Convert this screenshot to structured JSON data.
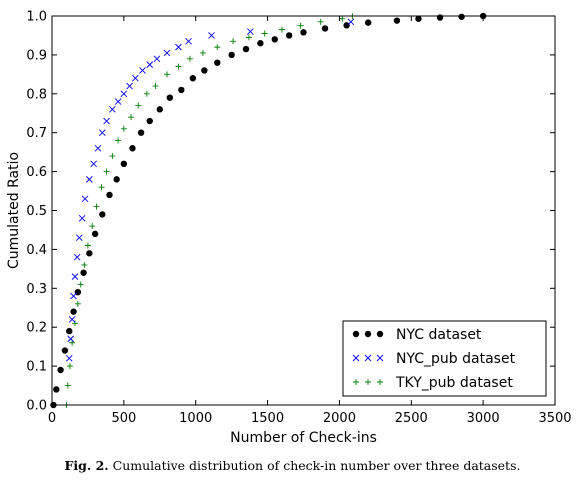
{
  "chart_data": {
    "type": "scatter",
    "xlabel": "Number of Check-ins",
    "ylabel": "Cumulated Ratio",
    "xlim": [
      0,
      3500
    ],
    "ylim": [
      0.0,
      1.0
    ],
    "xticks": [
      "0",
      "500",
      "1000",
      "1500",
      "2000",
      "2500",
      "3000",
      "3500"
    ],
    "yticks": [
      "0.0",
      "0.1",
      "0.2",
      "0.3",
      "0.4",
      "0.5",
      "0.6",
      "0.7",
      "0.8",
      "0.9",
      "1.0"
    ],
    "grid": false,
    "legend_position": "bottom-right",
    "series": [
      {
        "name": "NYC dataset",
        "marker": "circle",
        "color": "#000000",
        "x": [
          10,
          30,
          60,
          90,
          120,
          150,
          180,
          220,
          260,
          300,
          350,
          400,
          450,
          500,
          560,
          620,
          680,
          750,
          820,
          900,
          980,
          1060,
          1150,
          1250,
          1350,
          1450,
          1550,
          1650,
          1750,
          1900,
          2050,
          2200,
          2400,
          2550,
          2700,
          2850,
          3000
        ],
        "y": [
          0.0,
          0.04,
          0.09,
          0.14,
          0.19,
          0.24,
          0.29,
          0.34,
          0.39,
          0.44,
          0.49,
          0.54,
          0.58,
          0.62,
          0.66,
          0.7,
          0.73,
          0.76,
          0.79,
          0.81,
          0.84,
          0.86,
          0.88,
          0.9,
          0.915,
          0.93,
          0.94,
          0.95,
          0.958,
          0.968,
          0.976,
          0.983,
          0.988,
          0.993,
          0.996,
          0.998,
          1.0
        ]
      },
      {
        "name": "NYC_pub dataset",
        "marker": "x",
        "color": "#0000ff",
        "x": [
          120,
          130,
          140,
          150,
          160,
          175,
          190,
          210,
          230,
          260,
          290,
          320,
          350,
          380,
          420,
          460,
          500,
          540,
          580,
          630,
          680,
          730,
          800,
          880,
          950,
          1110,
          1380,
          2080
        ],
        "y": [
          0.12,
          0.17,
          0.22,
          0.28,
          0.33,
          0.38,
          0.43,
          0.48,
          0.53,
          0.58,
          0.62,
          0.66,
          0.7,
          0.73,
          0.76,
          0.78,
          0.8,
          0.82,
          0.84,
          0.86,
          0.875,
          0.89,
          0.905,
          0.92,
          0.935,
          0.95,
          0.96,
          0.985
        ]
      },
      {
        "name": "TKY_pub dataset",
        "marker": "plus",
        "color": "#007f00",
        "x": [
          100,
          110,
          125,
          140,
          160,
          180,
          200,
          225,
          250,
          280,
          310,
          345,
          380,
          420,
          460,
          500,
          550,
          600,
          660,
          720,
          800,
          880,
          960,
          1050,
          1150,
          1260,
          1370,
          1480,
          1600,
          1730,
          1870,
          2020,
          2090
        ],
        "y": [
          0.0,
          0.05,
          0.1,
          0.16,
          0.21,
          0.26,
          0.31,
          0.36,
          0.41,
          0.46,
          0.51,
          0.56,
          0.6,
          0.64,
          0.68,
          0.71,
          0.74,
          0.77,
          0.8,
          0.82,
          0.85,
          0.87,
          0.89,
          0.905,
          0.92,
          0.935,
          0.945,
          0.955,
          0.965,
          0.975,
          0.985,
          0.993,
          1.0
        ]
      }
    ]
  },
  "caption": {
    "label": "Fig. 2.",
    "text": " Cumulative distribution of check-in number over three datasets."
  }
}
